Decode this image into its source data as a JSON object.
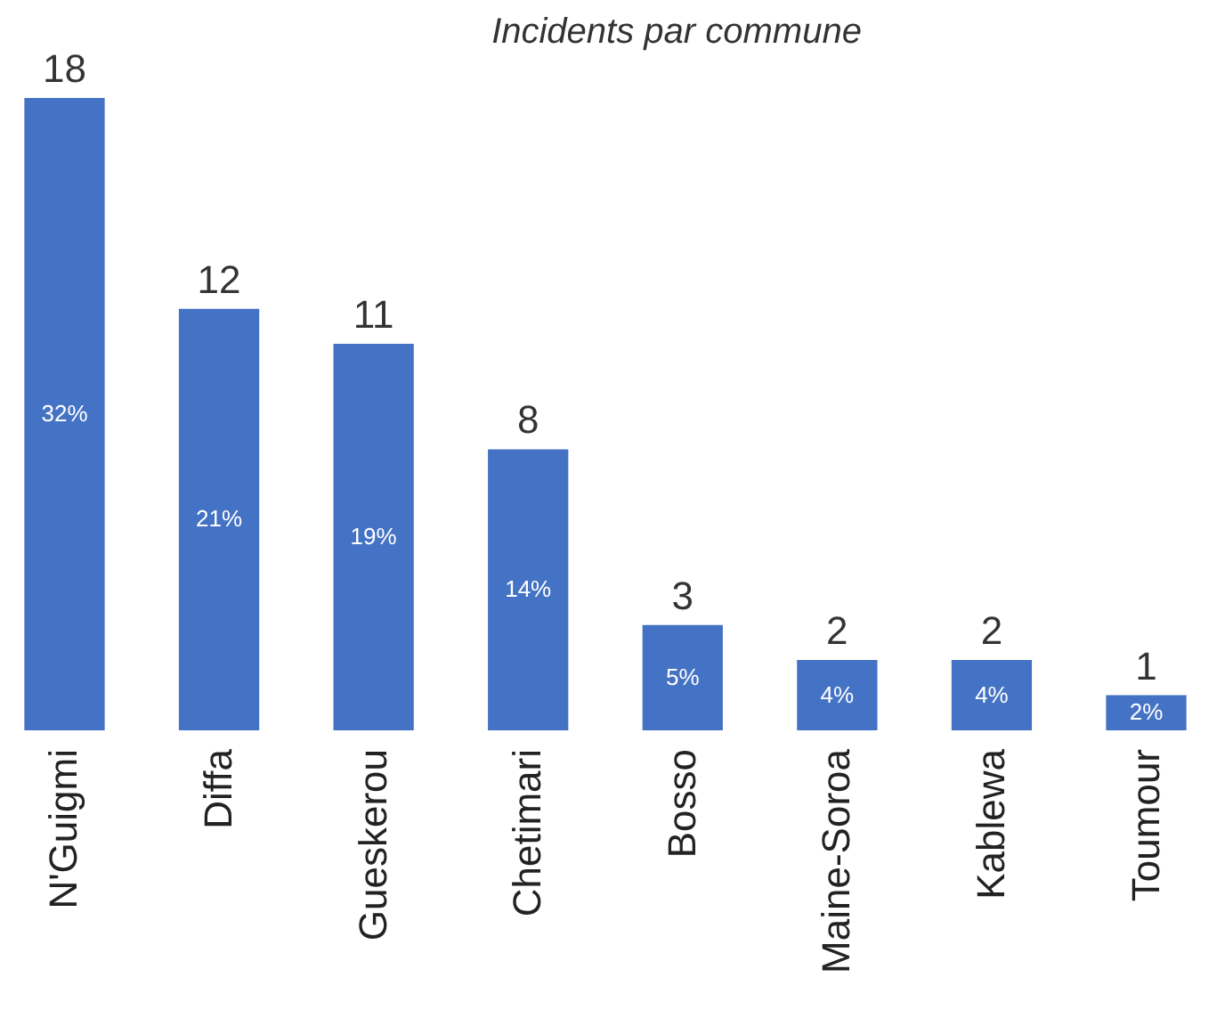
{
  "chart_data": {
    "type": "bar",
    "title": "Incidents par commune",
    "categories": [
      "N'Guigmi",
      "Diffa",
      "Gueskerou",
      "Chetimari",
      "Bosso",
      "Maine-Soroa",
      "Kablewa",
      "Toumour"
    ],
    "values": [
      18,
      12,
      11,
      8,
      3,
      2,
      2,
      1
    ],
    "annotations": [
      "32%",
      "21%",
      "19%",
      "14%",
      "5%",
      "4%",
      "4%",
      "2%"
    ],
    "color": "#4472c4",
    "data_labels": true
  }
}
